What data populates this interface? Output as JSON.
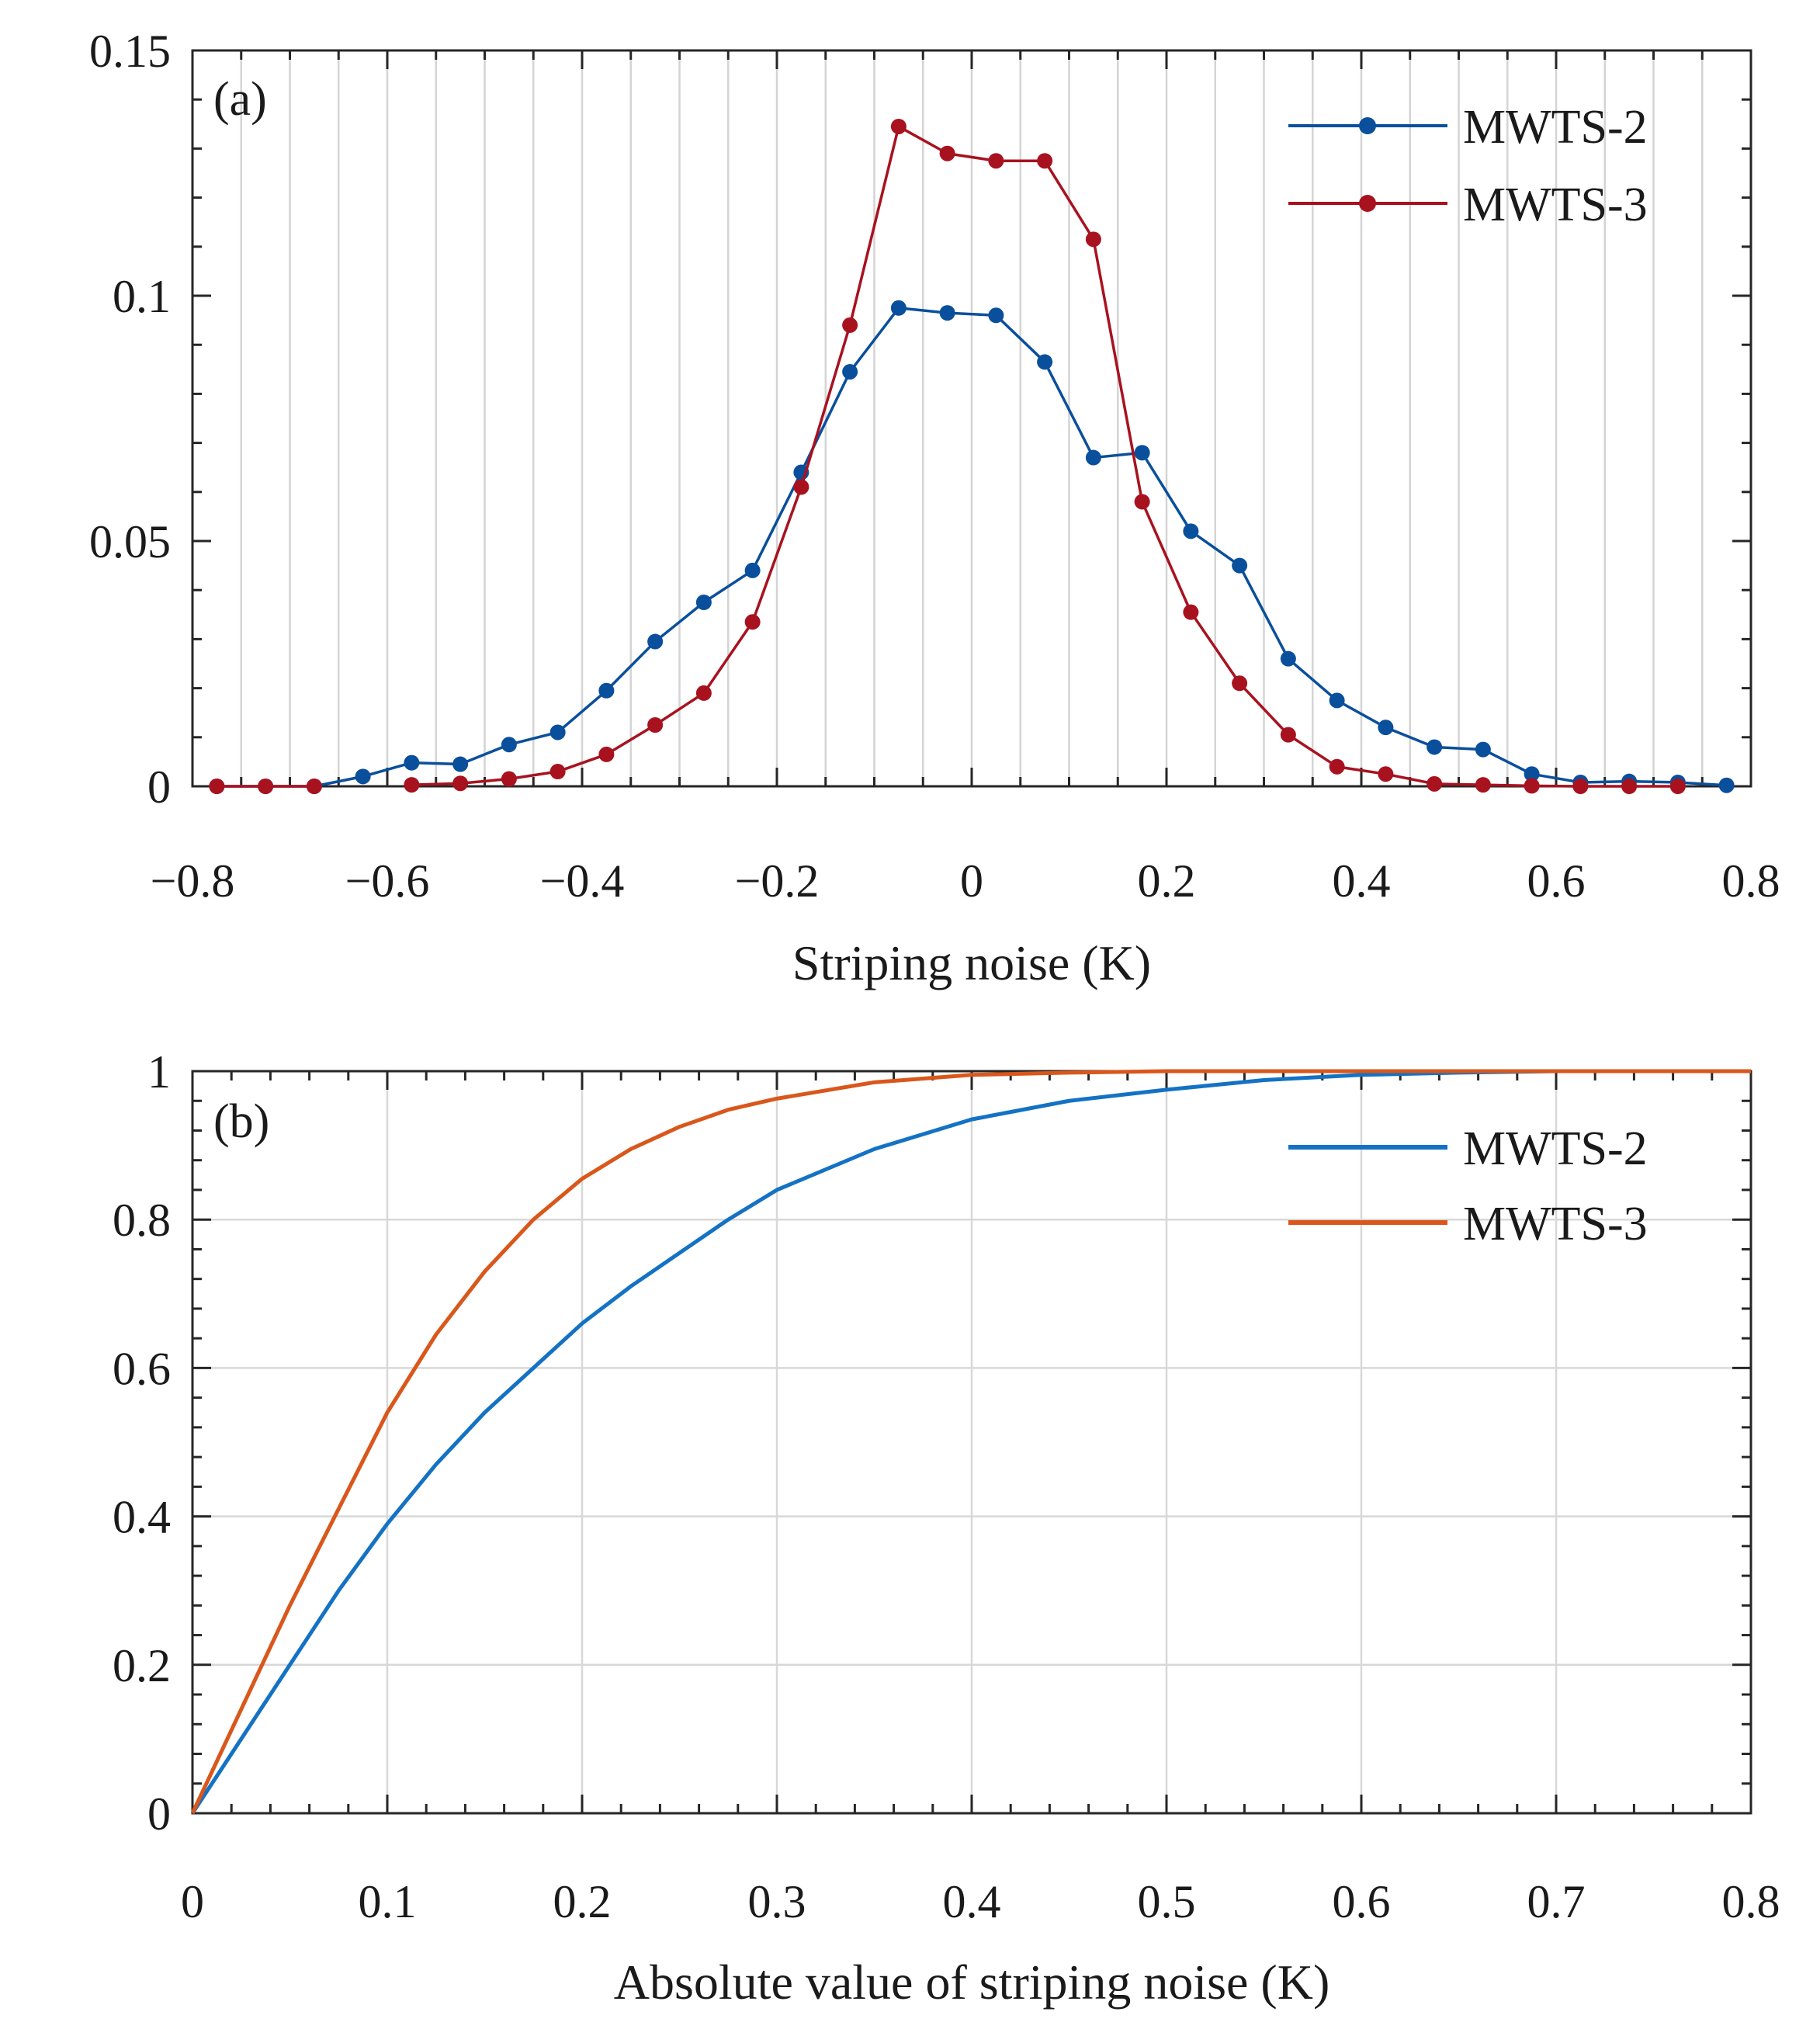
{
  "chart_data": [
    {
      "type": "line",
      "panel_label": "(a)",
      "title": "",
      "xlabel": "Striping noise (K)",
      "ylabel": "",
      "xlim": [
        -0.8,
        0.8
      ],
      "ylim": [
        0,
        0.15
      ],
      "xticks": [
        -0.8,
        -0.6,
        -0.4,
        -0.2,
        0,
        0.2,
        0.4,
        0.6,
        0.8
      ],
      "xtick_labels": [
        "−0.8",
        "−0.6",
        "−0.4",
        "−0.2",
        "0",
        "0.2",
        "0.4",
        "0.6",
        "0.8"
      ],
      "yticks": [
        0,
        0.05,
        0.1,
        0.15
      ],
      "ytick_labels": [
        "0",
        "0.05",
        "0.1",
        "0.15"
      ],
      "grid": "vertical",
      "legend_position": "top-right",
      "markers": "filled-circle",
      "x": [
        -0.775,
        -0.725,
        -0.675,
        -0.625,
        -0.575,
        -0.525,
        -0.475,
        -0.425,
        -0.375,
        -0.325,
        -0.275,
        -0.225,
        -0.175,
        -0.125,
        -0.075,
        -0.025,
        0.025,
        0.075,
        0.125,
        0.175,
        0.225,
        0.275,
        0.325,
        0.375,
        0.425,
        0.475,
        0.525,
        0.575,
        0.625,
        0.675,
        0.725,
        0.775
      ],
      "series": [
        {
          "name": "MWTS-2",
          "color": "#0a4f9c",
          "values": [
            0.0,
            0.0,
            0.0,
            0.002,
            0.0048,
            0.0045,
            0.0085,
            0.011,
            0.0195,
            0.0295,
            0.0375,
            0.044,
            0.064,
            0.0845,
            0.0975,
            0.0965,
            0.096,
            0.0865,
            0.067,
            0.068,
            0.052,
            0.045,
            0.026,
            0.0175,
            0.012,
            0.008,
            0.0075,
            0.0025,
            0.0008,
            0.001,
            0.0008,
            0.0002
          ]
        },
        {
          "name": "MWTS-3",
          "color": "#a8121f",
          "values": [
            0.0,
            0.0,
            0.0,
            null,
            0.0003,
            0.0006,
            0.0015,
            0.003,
            0.0065,
            0.0125,
            0.019,
            0.0335,
            0.061,
            0.094,
            0.1345,
            0.129,
            0.1275,
            0.1275,
            0.1115,
            0.058,
            0.0355,
            0.021,
            0.0105,
            0.004,
            0.0025,
            0.0005,
            0.0003,
            0.0001,
            0.0,
            0.0,
            0.0,
            null
          ]
        }
      ]
    },
    {
      "type": "line",
      "panel_label": "(b)",
      "title": "",
      "xlabel": "Absolute value of striping noise (K)",
      "ylabel": "",
      "xlim": [
        0,
        0.8
      ],
      "ylim": [
        0,
        1
      ],
      "xticks": [
        0,
        0.1,
        0.2,
        0.3,
        0.4,
        0.5,
        0.6,
        0.7,
        0.8
      ],
      "xtick_labels": [
        "0",
        "0.1",
        "0.2",
        "0.3",
        "0.4",
        "0.5",
        "0.6",
        "0.7",
        "0.8"
      ],
      "yticks": [
        0,
        0.2,
        0.4,
        0.6,
        0.8,
        1
      ],
      "ytick_labels": [
        "0",
        "0.2",
        "0.4",
        "0.6",
        "0.8",
        "1"
      ],
      "grid": "both",
      "legend_position": "top-right",
      "markers": "none",
      "series": [
        {
          "name": "MWTS-2",
          "color": "#1472c4",
          "x": [
            0,
            0.025,
            0.05,
            0.075,
            0.1,
            0.125,
            0.15,
            0.175,
            0.2,
            0.225,
            0.25,
            0.275,
            0.3,
            0.35,
            0.4,
            0.45,
            0.5,
            0.55,
            0.6,
            0.65,
            0.7,
            0.75,
            0.8
          ],
          "values": [
            0,
            0.1,
            0.2,
            0.3,
            0.39,
            0.47,
            0.54,
            0.6,
            0.66,
            0.71,
            0.755,
            0.8,
            0.84,
            0.895,
            0.935,
            0.96,
            0.975,
            0.988,
            0.995,
            0.998,
            1.0,
            1.0,
            1.0
          ]
        },
        {
          "name": "MWTS-3",
          "color": "#d9571b",
          "x": [
            0,
            0.025,
            0.05,
            0.075,
            0.1,
            0.125,
            0.15,
            0.175,
            0.2,
            0.225,
            0.25,
            0.275,
            0.3,
            0.35,
            0.4,
            0.45,
            0.5,
            0.55,
            0.6,
            0.65,
            0.7,
            0.75,
            0.8
          ],
          "values": [
            0,
            0.14,
            0.28,
            0.41,
            0.54,
            0.645,
            0.73,
            0.8,
            0.855,
            0.895,
            0.925,
            0.948,
            0.963,
            0.985,
            0.995,
            0.998,
            1.0,
            1.0,
            1.0,
            1.0,
            1.0,
            1.0,
            1.0
          ]
        }
      ]
    }
  ]
}
